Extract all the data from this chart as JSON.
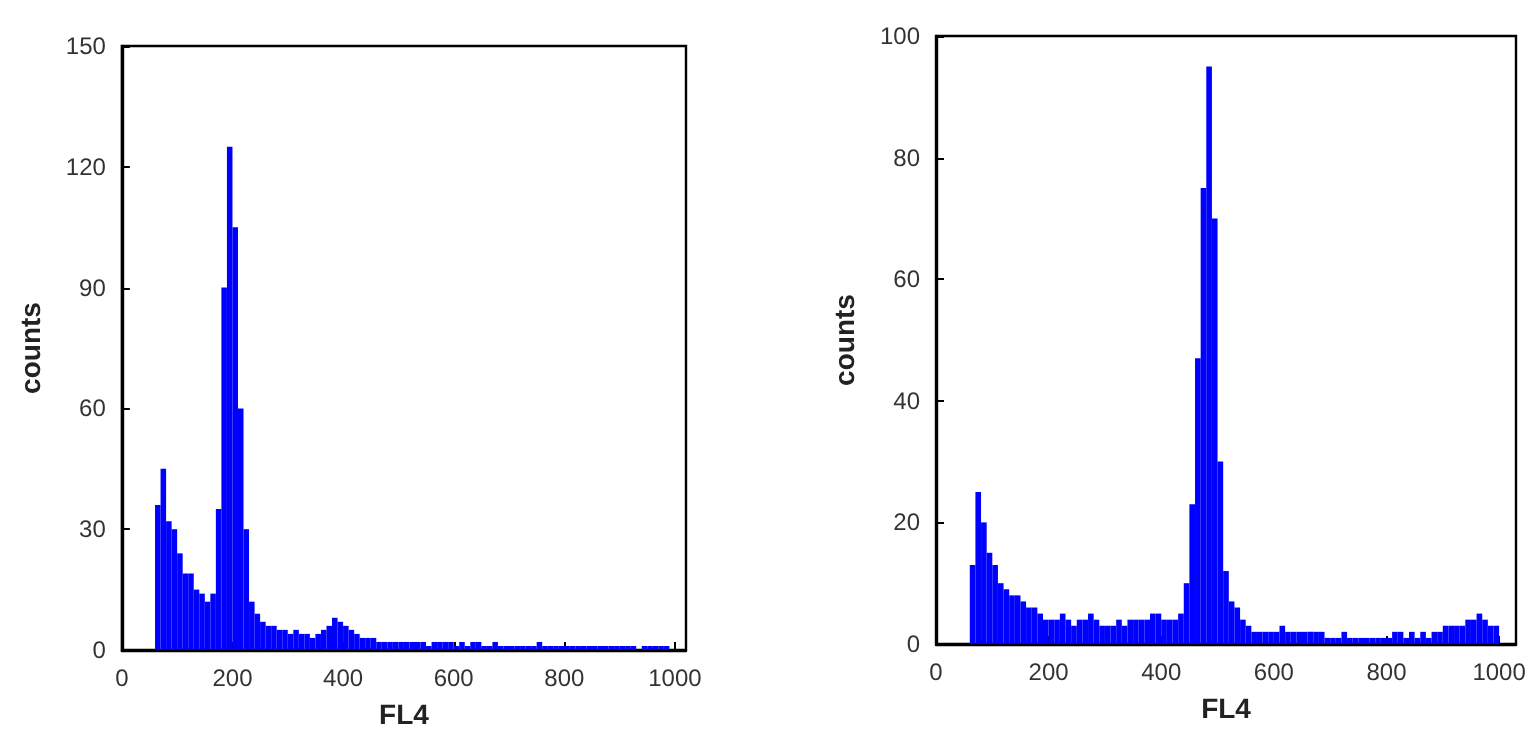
{
  "chart_data": [
    {
      "type": "histogram",
      "xlabel": "FL4",
      "ylabel": "counts",
      "color": "#0000ff",
      "bins": [
        60,
        70,
        80,
        90,
        100,
        110,
        120,
        130,
        140,
        150,
        160,
        170,
        180,
        190,
        200,
        210,
        220,
        230,
        240,
        250,
        260,
        270,
        280,
        290,
        300,
        310,
        320,
        330,
        340,
        350,
        360,
        370,
        380,
        390,
        400,
        410,
        420,
        430,
        440,
        450,
        460,
        470,
        480,
        490,
        500,
        510,
        520,
        530,
        540,
        550,
        560,
        570,
        580,
        590,
        600,
        610,
        620,
        630,
        640,
        650,
        660,
        670,
        680,
        690,
        700,
        710,
        720,
        730,
        740,
        750,
        760,
        770,
        780,
        790,
        800,
        810,
        820,
        830,
        840,
        850,
        860,
        870,
        880,
        890,
        900,
        910,
        920,
        930,
        940,
        950,
        960,
        970,
        980,
        990,
        1000
      ],
      "values": [
        36,
        45,
        32,
        30,
        24,
        19,
        19,
        15,
        14,
        12,
        14,
        35,
        90,
        125,
        105,
        60,
        30,
        12,
        9,
        7,
        6,
        6,
        5,
        5,
        4,
        5,
        4,
        4,
        3,
        4,
        5,
        6,
        8,
        7,
        6,
        5,
        4,
        3,
        3,
        3,
        2,
        2,
        2,
        2,
        2,
        2,
        2,
        2,
        2,
        1,
        2,
        2,
        2,
        2,
        1,
        2,
        1,
        2,
        2,
        1,
        1,
        2,
        1,
        1,
        1,
        1,
        1,
        1,
        1,
        2,
        1,
        1,
        1,
        1,
        1,
        1,
        1,
        1,
        1,
        1,
        1,
        1,
        1,
        1,
        1,
        1,
        1,
        0,
        1,
        1,
        1,
        1,
        1,
        0
      ],
      "xlim": [
        0,
        1020
      ],
      "xticks": [
        0,
        200,
        400,
        600,
        800,
        1000
      ],
      "ylim": [
        0,
        150
      ],
      "yticks": [
        0,
        30,
        60,
        90,
        120,
        150
      ]
    },
    {
      "type": "histogram",
      "xlabel": "FL4",
      "ylabel": "counts",
      "color": "#0000ff",
      "bins": [
        60,
        70,
        80,
        90,
        100,
        110,
        120,
        130,
        140,
        150,
        160,
        170,
        180,
        190,
        200,
        210,
        220,
        230,
        240,
        250,
        260,
        270,
        280,
        290,
        300,
        310,
        320,
        330,
        340,
        350,
        360,
        370,
        380,
        390,
        400,
        410,
        420,
        430,
        440,
        450,
        460,
        470,
        480,
        490,
        500,
        510,
        520,
        530,
        540,
        550,
        560,
        570,
        580,
        590,
        600,
        610,
        620,
        630,
        640,
        650,
        660,
        670,
        680,
        690,
        700,
        710,
        720,
        730,
        740,
        750,
        760,
        770,
        780,
        790,
        800,
        810,
        820,
        830,
        840,
        850,
        860,
        870,
        880,
        890,
        900,
        910,
        920,
        930,
        940,
        950,
        960,
        970,
        980,
        990,
        1000
      ],
      "values": [
        13,
        25,
        20,
        15,
        13,
        10,
        9,
        8,
        8,
        7,
        6,
        6,
        5,
        4,
        4,
        4,
        5,
        4,
        3,
        4,
        4,
        5,
        4,
        3,
        3,
        3,
        4,
        3,
        4,
        4,
        4,
        4,
        5,
        5,
        4,
        4,
        4,
        5,
        10,
        23,
        47,
        75,
        95,
        70,
        30,
        12,
        7,
        6,
        4,
        3,
        2,
        2,
        2,
        2,
        2,
        3,
        2,
        2,
        2,
        2,
        2,
        2,
        2,
        1,
        1,
        1,
        2,
        1,
        1,
        1,
        1,
        1,
        1,
        1,
        1,
        2,
        2,
        1,
        2,
        1,
        2,
        1,
        2,
        2,
        3,
        3,
        3,
        3,
        4,
        4,
        5,
        4,
        3,
        3
      ],
      "xlim": [
        0,
        1030
      ],
      "xticks": [
        0,
        200,
        400,
        600,
        800,
        1000
      ],
      "ylim": [
        0,
        100
      ],
      "yticks": [
        0,
        20,
        40,
        60,
        80,
        100
      ]
    }
  ]
}
